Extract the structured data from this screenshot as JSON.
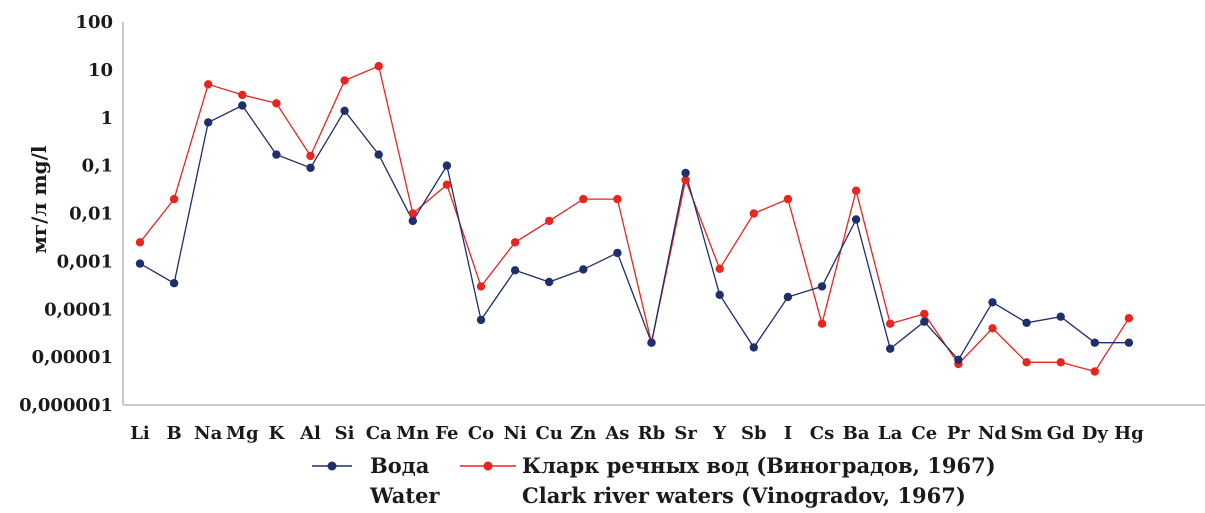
{
  "chart_data": {
    "type": "line",
    "y_scale": "log",
    "ylabel": "мг/л   mg/l",
    "ylim": [
      1e-06,
      100
    ],
    "y_ticks": [
      "100",
      "10",
      "1",
      "0,1",
      "0,01",
      "0,001",
      "0,0001",
      "0,00001",
      "0,000001"
    ],
    "y_tick_values": [
      100,
      10,
      1,
      0.1,
      0.01,
      0.001,
      0.0001,
      1e-05,
      1e-06
    ],
    "categories": [
      "Li",
      "B",
      "Na",
      "Mg",
      "K",
      "Al",
      "Si",
      "Ca",
      "Mn",
      "Fe",
      "Co",
      "Ni",
      "Cu",
      "Zn",
      "As",
      "Rb",
      "Sr",
      "Y",
      "Sb",
      "I",
      "Cs",
      "Ba",
      "La",
      "Ce",
      "Pr",
      "Nd",
      "Sm",
      "Gd",
      "Dy",
      "Hg"
    ],
    "series": [
      {
        "name_ru": "Вода",
        "name_en": "Water",
        "color": "#1f2f6b",
        "values": [
          0.0009,
          0.00035,
          0.8,
          1.8,
          0.17,
          0.09,
          1.4,
          0.17,
          0.007,
          0.1,
          6e-05,
          0.00065,
          0.00037,
          0.00068,
          0.0015,
          2e-05,
          0.07,
          0.0002,
          1.6e-05,
          0.00018,
          0.0003,
          0.0075,
          1.5e-05,
          5.5e-05,
          8.8e-06,
          0.00014,
          5.2e-05,
          7e-05,
          2e-05,
          2e-05
        ]
      },
      {
        "name_ru": "Кларк речных вод (Виноградов, 1967)",
        "name_en": "Clark river waters (Vinogradov, 1967)",
        "color": "#e8251f",
        "values": [
          0.0025,
          0.02,
          5,
          3,
          2,
          0.16,
          6,
          12,
          0.01,
          0.04,
          0.0003,
          0.0025,
          0.007,
          0.02,
          0.02,
          2e-05,
          0.05,
          0.0007,
          0.01,
          0.02,
          5e-05,
          0.03,
          5e-05,
          8e-05,
          7.2e-06,
          4e-05,
          7.8e-06,
          7.8e-06,
          5e-06,
          6.5e-05
        ]
      }
    ],
    "grid": false,
    "legend_position": "bottom"
  },
  "legend": {
    "water_ru": "Вода",
    "water_en": "Water",
    "clark_ru": "Кларк речных вод (Виноградов, 1967)",
    "clark_en": "Clark river waters (Vinogradov, 1967)"
  }
}
